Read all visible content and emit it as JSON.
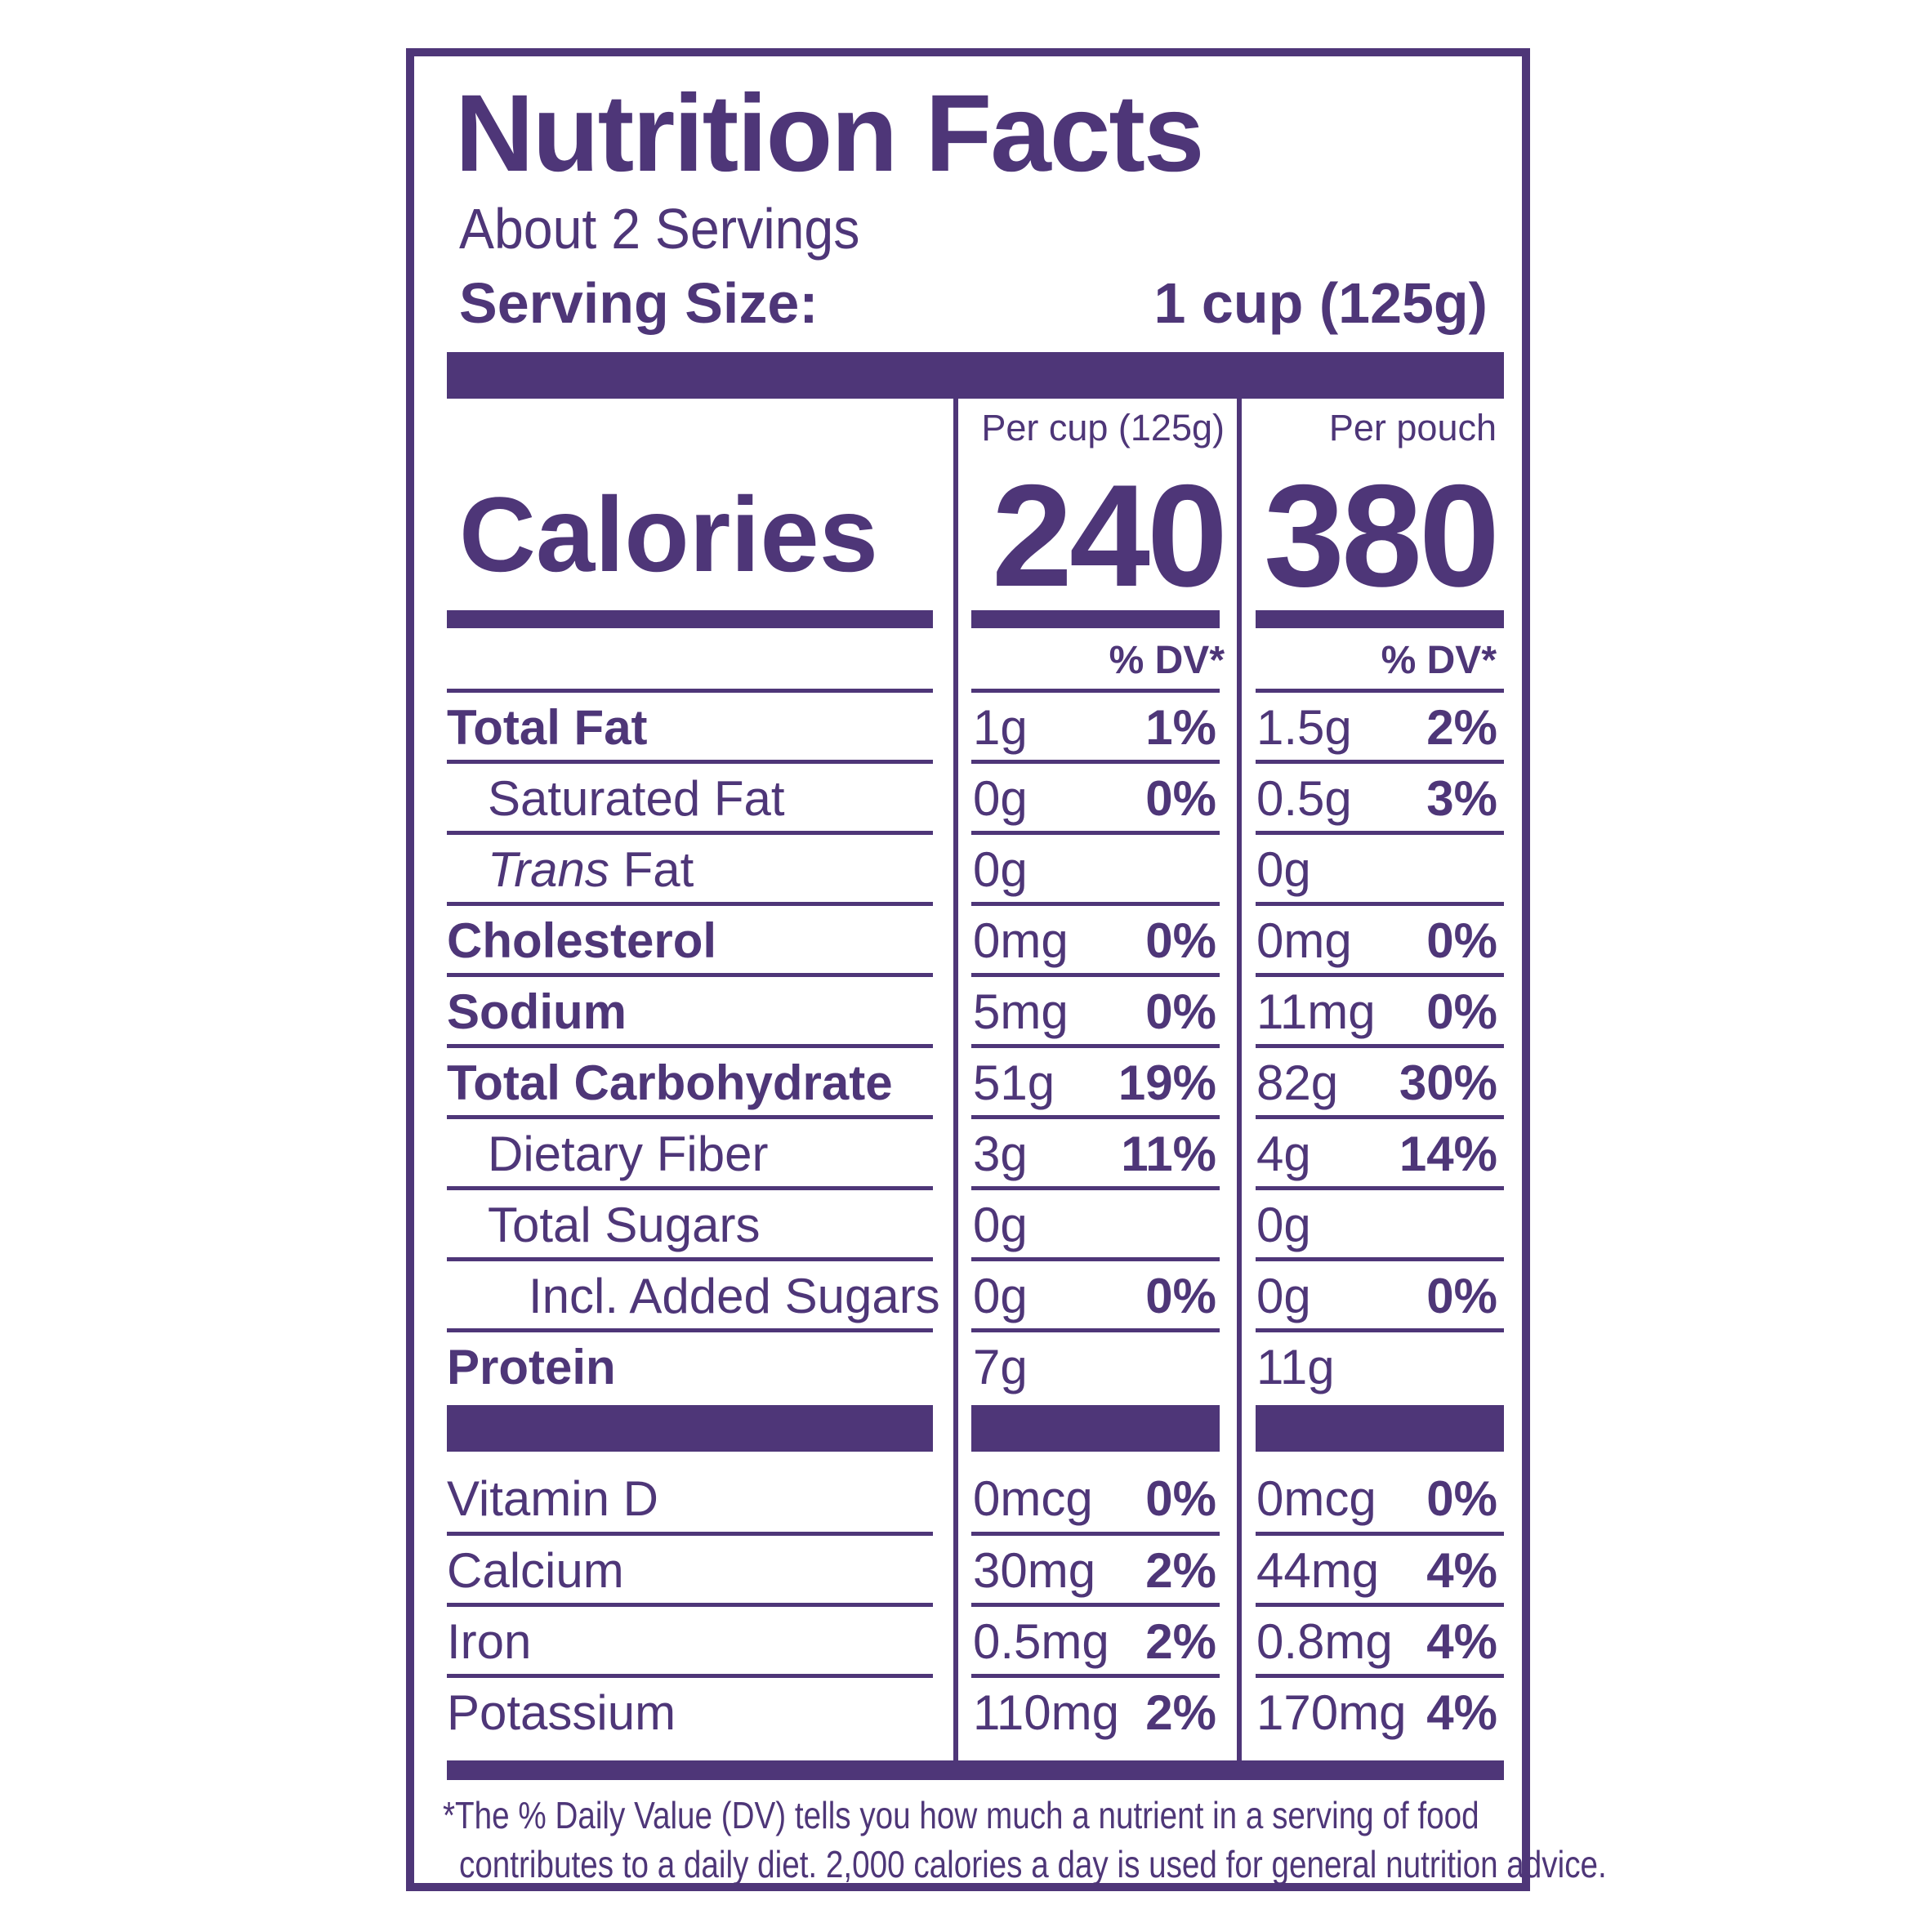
{
  "title": "Nutrition Facts",
  "servings_per_container": "About 2 Servings",
  "serving_size": {
    "label": "Serving Size:",
    "value": "1 cup (125g)"
  },
  "columns": [
    {
      "header": "Per cup (125g)",
      "calories": "240",
      "dv_header": "% DV*"
    },
    {
      "header": "Per pouch",
      "calories": "380",
      "dv_header": "% DV*"
    }
  ],
  "calories_label": "Calories",
  "nutrients": [
    {
      "name": "Total Fat",
      "cup_amount": "1g",
      "cup_dv": "1%",
      "pouch_amount": "1.5g",
      "pouch_dv": "2%"
    },
    {
      "name": "Saturated Fat",
      "cup_amount": "0g",
      "cup_dv": "0%",
      "pouch_amount": "0.5g",
      "pouch_dv": "3%"
    },
    {
      "name_italic": "Trans",
      "name_rest": " Fat",
      "cup_amount": "0g",
      "cup_dv": "",
      "pouch_amount": "0g",
      "pouch_dv": ""
    },
    {
      "name": "Cholesterol",
      "cup_amount": "0mg",
      "cup_dv": "0%",
      "pouch_amount": "0mg",
      "pouch_dv": "0%"
    },
    {
      "name": "Sodium",
      "cup_amount": "5mg",
      "cup_dv": "0%",
      "pouch_amount": "11mg",
      "pouch_dv": "0%"
    },
    {
      "name": "Total Carbohydrate",
      "cup_amount": "51g",
      "cup_dv": "19%",
      "pouch_amount": "82g",
      "pouch_dv": "30%"
    },
    {
      "name": "Dietary Fiber",
      "cup_amount": "3g",
      "cup_dv": "11%",
      "pouch_amount": "4g",
      "pouch_dv": "14%"
    },
    {
      "name": "Total Sugars",
      "cup_amount": "0g",
      "cup_dv": "",
      "pouch_amount": "0g",
      "pouch_dv": ""
    },
    {
      "name": "Incl. Added Sugars",
      "cup_amount": "0g",
      "cup_dv": "0%",
      "pouch_amount": "0g",
      "pouch_dv": "0%"
    },
    {
      "name": "Protein",
      "cup_amount": "7g",
      "cup_dv": "",
      "pouch_amount": "11g",
      "pouch_dv": ""
    }
  ],
  "vitamins": [
    {
      "name": "Vitamin D",
      "cup_amount": "0mcg",
      "cup_dv": "0%",
      "pouch_amount": "0mcg",
      "pouch_dv": "0%"
    },
    {
      "name": "Calcium",
      "cup_amount": "30mg",
      "cup_dv": "2%",
      "pouch_amount": "44mg",
      "pouch_dv": "4%"
    },
    {
      "name": "Iron",
      "cup_amount": "0.5mg",
      "cup_dv": "2%",
      "pouch_amount": "0.8mg",
      "pouch_dv": "4%"
    },
    {
      "name": "Potassium",
      "cup_amount": "110mg",
      "cup_dv": "2%",
      "pouch_amount": "170mg",
      "pouch_dv": "4%"
    }
  ],
  "footnote": {
    "line1": "*The % Daily Value (DV) tells you how much a nutrient in a serving of food",
    "line2": "contributes to a daily diet. 2,000 calories a day is used for general nutrition advice."
  },
  "colors": {
    "ink": "#4e3678",
    "background": "#ffffff"
  }
}
